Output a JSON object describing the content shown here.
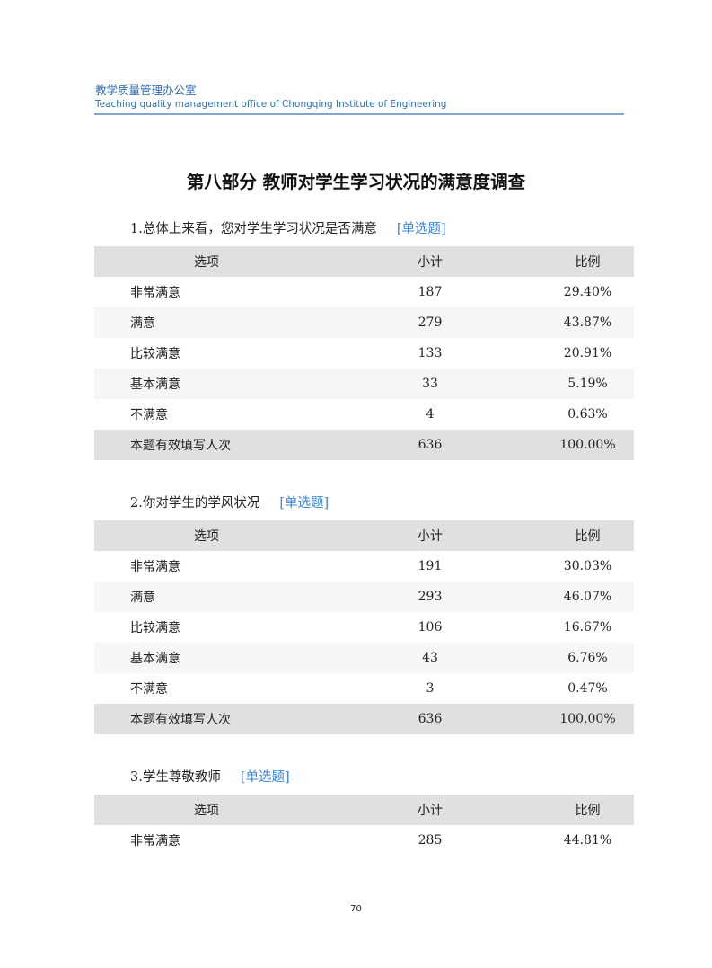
{
  "header": {
    "org_cn": "教学质量管理办公室",
    "org_en": "Teaching quality management office of Chongqing Institute of Engineering"
  },
  "title": "第八部分  教师对学生学习状况的满意度调查",
  "columns": [
    "选项",
    "小计",
    "比例"
  ],
  "questions": [
    {
      "title": "1.总体上来看，您对学生学习状况是否满意",
      "type": "[单选题]",
      "rows": [
        [
          "非常满意",
          "187",
          "29.40%"
        ],
        [
          "满意",
          "279",
          "43.87%"
        ],
        [
          "比较满意",
          "133",
          "20.91%"
        ],
        [
          "基本满意",
          "33",
          "5.19%"
        ],
        [
          "不满意",
          "4",
          "0.63%"
        ]
      ],
      "total": [
        "本题有效填写人次",
        "636",
        "100.00%"
      ]
    },
    {
      "title": "2.你对学生的学风状况",
      "type": "[单选题]",
      "rows": [
        [
          "非常满意",
          "191",
          "30.03%"
        ],
        [
          "满意",
          "293",
          "46.07%"
        ],
        [
          "比较满意",
          "106",
          "16.67%"
        ],
        [
          "基本满意",
          "43",
          "6.76%"
        ],
        [
          "不满意",
          "3",
          "0.47%"
        ]
      ],
      "total": [
        "本题有效填写人次",
        "636",
        "100.00%"
      ]
    },
    {
      "title": "3.学生尊敬教师",
      "type": "[单选题]",
      "rows": [
        [
          "非常满意",
          "285",
          "44.81%"
        ]
      ]
    }
  ],
  "page_number": "70"
}
